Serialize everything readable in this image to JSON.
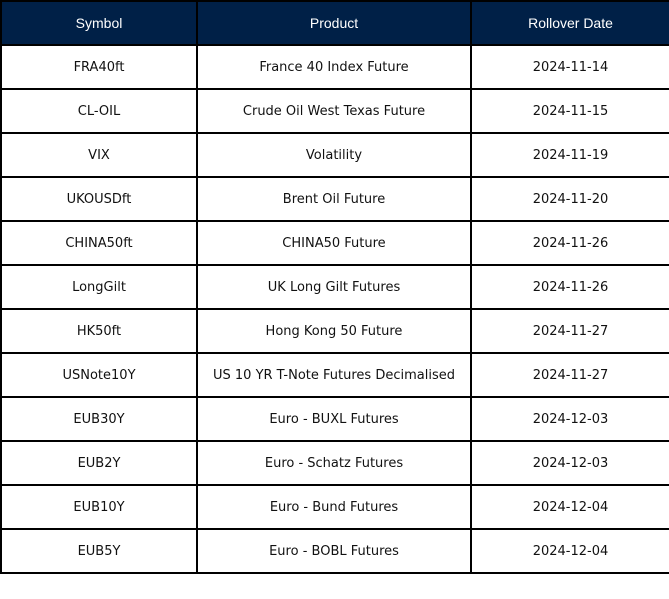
{
  "table": {
    "headers": [
      "Symbol",
      "Product",
      "Rollover Date"
    ],
    "header_color": "#002047",
    "rows": [
      [
        "FRA40ft",
        "France 40 Index Future",
        "2024-11-14"
      ],
      [
        "CL-OIL",
        "Crude Oil West Texas Future",
        "2024-11-15"
      ],
      [
        "VIX",
        "Volatility",
        "2024-11-19"
      ],
      [
        "UKOUSDft",
        "Brent Oil Future",
        "2024-11-20"
      ],
      [
        "CHINA50ft",
        "CHINA50 Future",
        "2024-11-26"
      ],
      [
        "LongGilt",
        "UK Long Gilt Futures",
        "2024-11-26"
      ],
      [
        "HK50ft",
        "Hong Kong 50 Future",
        "2024-11-27"
      ],
      [
        "USNote10Y",
        "US 10 YR T-Note Futures Decimalised",
        "2024-11-27"
      ],
      [
        "EUB30Y",
        "Euro - BUXL Futures",
        "2024-12-03"
      ],
      [
        "EUB2Y",
        "Euro - Schatz Futures",
        "2024-12-03"
      ],
      [
        "EUB10Y",
        "Euro - Bund Futures",
        "2024-12-04"
      ],
      [
        "EUB5Y",
        "Euro - BOBL Futures",
        "2024-12-04"
      ]
    ]
  }
}
